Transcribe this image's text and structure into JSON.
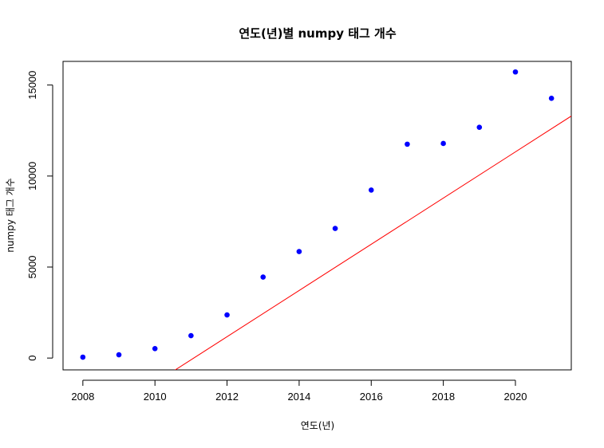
{
  "chart_data": {
    "type": "scatter",
    "title": "연도(년)별 numpy 태그 개수",
    "xlabel": "연도(년)",
    "ylabel": "numpy 태그 개수",
    "xlim": [
      2007.45,
      2021.55
    ],
    "ylim": [
      -650,
      16300
    ],
    "xticks": [
      2008,
      2010,
      2012,
      2014,
      2016,
      2018,
      2020
    ],
    "yticks": [
      0,
      5000,
      10000,
      15000
    ],
    "point_color": "#0000ff",
    "line_color": "#ff0000",
    "grid": false,
    "legend": "none",
    "points": [
      {
        "x": 2008,
        "y": 50
      },
      {
        "x": 2009,
        "y": 180
      },
      {
        "x": 2010,
        "y": 520
      },
      {
        "x": 2011,
        "y": 1230
      },
      {
        "x": 2012,
        "y": 2370
      },
      {
        "x": 2013,
        "y": 4450
      },
      {
        "x": 2014,
        "y": 5850
      },
      {
        "x": 2015,
        "y": 7120
      },
      {
        "x": 2016,
        "y": 9230
      },
      {
        "x": 2017,
        "y": 11750
      },
      {
        "x": 2018,
        "y": 11790
      },
      {
        "x": 2019,
        "y": 12680
      },
      {
        "x": 2020,
        "y": 15720
      },
      {
        "x": 2021,
        "y": 14270
      }
    ],
    "fit_line": {
      "intercept": -2552860,
      "slope": 1269.4
    }
  }
}
